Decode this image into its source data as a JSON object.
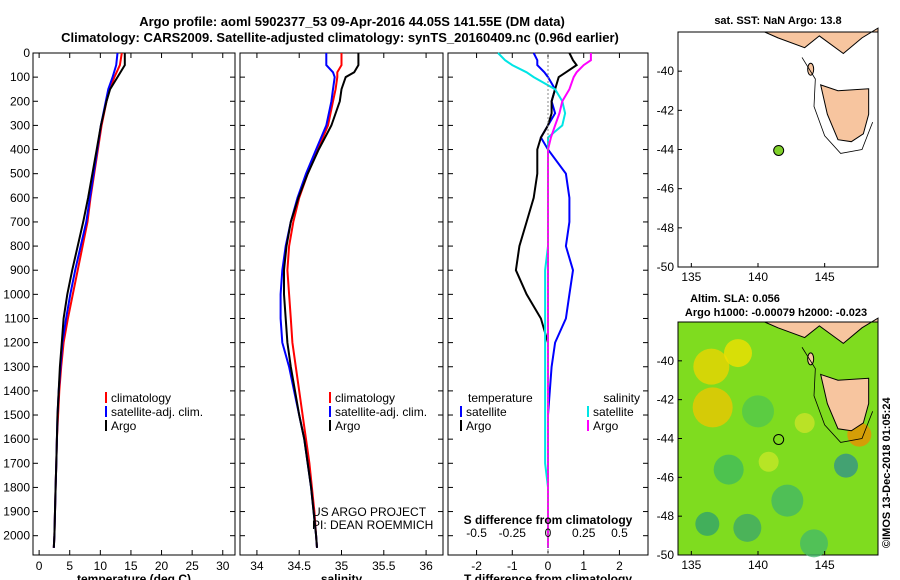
{
  "header": {
    "title_line1": "Argo profile: aoml 5902377_53 09-Apr-2016 44.05S 141.55E (DM data)",
    "title_line2": "Climatology: CARS2009. Satellite-adjusted climatology: synTS_20160409.nc (0.96d earlier)"
  },
  "credits": {
    "project": "US ARGO PROJECT",
    "pi": "PI: DEAN ROEMMICH",
    "imos": "©IMOS 13-Dec-2018 01:05:24"
  },
  "colors": {
    "climatology": "#ff0000",
    "satellite": "#0000ff",
    "argo": "#000000",
    "sat_salinity": "#00e5e5",
    "argo_salinity": "#ff00ff"
  },
  "chart_data": [
    {
      "type": "line",
      "name": "temperature-profile",
      "xlabel": "temperature (deg C)",
      "ylabel": "depth",
      "xlim": [
        -1,
        32
      ],
      "ylim": [
        2080,
        0
      ],
      "xticks": [
        0,
        5,
        10,
        15,
        20,
        25,
        30
      ],
      "yticks": [
        0,
        100,
        200,
        300,
        400,
        500,
        600,
        700,
        800,
        900,
        1000,
        1100,
        1200,
        1300,
        1400,
        1500,
        1600,
        1700,
        1800,
        1900,
        2000
      ],
      "legend": [
        "climatology",
        "satellite-adj. clim.",
        "Argo"
      ],
      "depth": [
        0,
        50,
        100,
        150,
        200,
        300,
        400,
        500,
        600,
        700,
        800,
        900,
        1000,
        1100,
        1200,
        1300,
        1400,
        1500,
        1600,
        1700,
        1800,
        1900,
        2000,
        2050
      ],
      "series": [
        {
          "name": "climatology",
          "values": [
            13.5,
            13.2,
            12.3,
            11.5,
            11.0,
            10.2,
            9.6,
            9.0,
            8.4,
            7.9,
            7.1,
            6.3,
            5.5,
            4.7,
            4.0,
            3.6,
            3.3,
            3.1,
            2.9,
            2.8,
            2.7,
            2.6,
            2.5,
            2.4
          ]
        },
        {
          "name": "satellite-adj. clim.",
          "values": [
            12.8,
            12.6,
            12.0,
            11.3,
            10.9,
            10.1,
            9.5,
            8.9,
            8.3,
            7.7,
            6.8,
            5.9,
            5.1,
            4.4,
            3.8,
            3.5,
            3.2,
            3.0,
            2.9,
            2.8,
            2.7,
            2.6,
            2.5,
            2.4
          ]
        },
        {
          "name": "Argo",
          "values": [
            14.0,
            14.0,
            12.8,
            11.6,
            11.0,
            10.1,
            9.4,
            8.7,
            8.0,
            7.2,
            6.3,
            5.4,
            4.6,
            4.0,
            3.7,
            3.4,
            3.2,
            3.0,
            2.9,
            2.8,
            2.7,
            2.6,
            2.5,
            2.4
          ]
        }
      ]
    },
    {
      "type": "line",
      "name": "salinity-profile",
      "xlabel": "salinity",
      "xlim": [
        33.8,
        36.2
      ],
      "ylim": [
        2080,
        0
      ],
      "xticks": [
        34,
        34.5,
        35,
        35.5,
        36
      ],
      "legend": [
        "climatology",
        "satellite-adj. clim.",
        "Argo"
      ],
      "depth": [
        0,
        50,
        80,
        100,
        150,
        200,
        300,
        400,
        500,
        600,
        700,
        800,
        900,
        1000,
        1100,
        1200,
        1300,
        1400,
        1500,
        1600,
        1700,
        1800,
        1900,
        2000,
        2050
      ],
      "series": [
        {
          "name": "climatology",
          "values": [
            35.0,
            35.0,
            34.95,
            34.95,
            34.93,
            34.9,
            34.84,
            34.72,
            34.6,
            34.5,
            34.43,
            34.38,
            34.36,
            34.38,
            34.4,
            34.42,
            34.46,
            34.5,
            34.54,
            34.58,
            34.62,
            34.65,
            34.68,
            34.7,
            34.71
          ]
        },
        {
          "name": "satellite-adj. clim.",
          "values": [
            34.82,
            34.82,
            34.9,
            34.92,
            34.9,
            34.88,
            34.82,
            34.7,
            34.58,
            34.48,
            34.4,
            34.34,
            34.3,
            34.28,
            34.28,
            34.3,
            34.38,
            34.44,
            34.5,
            34.56,
            34.6,
            34.64,
            34.67,
            34.7,
            34.71
          ]
        },
        {
          "name": "Argo",
          "values": [
            35.2,
            35.2,
            35.15,
            35.05,
            35.0,
            34.98,
            34.88,
            34.73,
            34.6,
            34.49,
            34.4,
            34.35,
            34.32,
            34.32,
            34.34,
            34.36,
            34.4,
            34.45,
            34.5,
            34.56,
            34.6,
            34.64,
            34.67,
            34.7,
            34.71
          ]
        }
      ]
    },
    {
      "type": "line",
      "name": "difference-profile",
      "xlabel": "T difference from climatology",
      "xlabel_top": "S difference from climatology",
      "xlim": [
        -2.8,
        2.8
      ],
      "ylim": [
        2080,
        0
      ],
      "xticks": [
        -2,
        -1,
        0,
        1,
        2
      ],
      "xtick_labels_top": [
        "-0.5",
        "-0.25",
        "0",
        "0.25",
        "0.5"
      ],
      "xticks_top": [
        -0.5,
        -0.25,
        0,
        0.25,
        0.5
      ],
      "legend_temperature": [
        "temperature",
        "satellite",
        "Argo"
      ],
      "legend_salinity": [
        "salinity",
        "satellite",
        "Argo"
      ],
      "depth": [
        0,
        30,
        50,
        80,
        100,
        150,
        200,
        250,
        300,
        350,
        400,
        500,
        600,
        700,
        800,
        900,
        1000,
        1100,
        1200,
        1300,
        1400,
        1500,
        1600,
        1700,
        1800,
        1900,
        2000,
        2050
      ],
      "series": [
        {
          "name": "temperature satellite",
          "values": [
            -0.4,
            -0.3,
            -0.3,
            -0.1,
            0.0,
            0.2,
            0.1,
            0.2,
            0.0,
            -0.2,
            0.0,
            0.5,
            0.6,
            0.6,
            0.5,
            0.7,
            0.6,
            0.5,
            0.2,
            0.1,
            0.05,
            0.0,
            0.0,
            0.0,
            0.0,
            0.0,
            0.0,
            0.0
          ]
        },
        {
          "name": "temperature Argo",
          "values": [
            0.6,
            0.7,
            0.8,
            0.5,
            0.3,
            0.2,
            0.1,
            0.1,
            0.0,
            -0.2,
            -0.3,
            -0.3,
            -0.4,
            -0.6,
            -0.8,
            -0.9,
            -0.6,
            -0.2,
            0.0,
            0.0,
            0.0,
            0.0,
            0.0,
            0.0,
            0.0,
            0.0,
            0.0,
            0.0
          ]
        },
        {
          "name": "salinity satellite",
          "values": [
            -0.35,
            -0.3,
            -0.25,
            -0.15,
            -0.1,
            0.05,
            0.1,
            0.12,
            0.1,
            0.0,
            0.0,
            0.0,
            0.0,
            0.0,
            0.0,
            -0.02,
            -0.02,
            -0.02,
            -0.02,
            -0.02,
            -0.02,
            -0.02,
            -0.02,
            -0.02,
            0.0,
            0.0,
            0.0,
            0.0
          ]
        },
        {
          "name": "salinity Argo",
          "values": [
            0.3,
            0.3,
            0.25,
            0.2,
            0.18,
            0.15,
            0.1,
            0.08,
            0.05,
            0.02,
            0.0,
            0.0,
            0.0,
            0.0,
            0.0,
            0.0,
            0.0,
            0.0,
            0.0,
            0.0,
            0.0,
            0.0,
            0.0,
            0.0,
            0.0,
            0.0,
            0.0,
            0.0
          ]
        }
      ]
    },
    {
      "type": "map",
      "name": "sst-map",
      "title": "sat. SST: NaN Argo: 13.8",
      "xlim": [
        134,
        149
      ],
      "ylim": [
        -50,
        -38
      ],
      "xticks": [
        135,
        140,
        145
      ],
      "yticks": [
        -40,
        -42,
        -44,
        -46,
        -48,
        -50
      ],
      "argo_position": {
        "lon": 141.55,
        "lat": -44.05
      }
    },
    {
      "type": "map",
      "name": "sla-map",
      "title_line1": "Altim. SLA: 0.056",
      "title_line2": "Argo h1000: -0.00079 h2000: -0.023",
      "xlim": [
        134,
        149
      ],
      "ylim": [
        -50,
        -38
      ],
      "xticks": [
        135,
        140,
        145
      ],
      "yticks": [
        -40,
        -42,
        -44,
        -46,
        -48,
        -50
      ],
      "argo_position": {
        "lon": 141.55,
        "lat": -44.05
      }
    }
  ]
}
